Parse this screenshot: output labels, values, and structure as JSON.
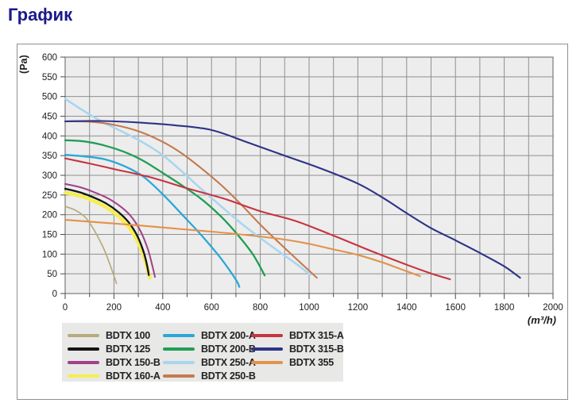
{
  "page": {
    "title": "График"
  },
  "chart_data": {
    "type": "line",
    "title": "График",
    "xlabel": "(m³/h)",
    "ylabel": "(Pa)",
    "xlim": [
      0,
      2000
    ],
    "ylim": [
      0,
      600
    ],
    "x_ticks": [
      0,
      200,
      400,
      600,
      800,
      1000,
      1200,
      1400,
      1600,
      1800,
      2000
    ],
    "x_minor_step": 100,
    "y_ticks": [
      0,
      50,
      100,
      150,
      200,
      250,
      300,
      350,
      400,
      450,
      500,
      550,
      600
    ],
    "grid": true,
    "plot_bg": "#ededed",
    "grid_color": "#8f8f8f",
    "border_color": "#7a7a7a",
    "tick_text_color": "#1c1c1c",
    "legend_position": "bottom",
    "draw_order": [
      3,
      0,
      1,
      2,
      4,
      5,
      6,
      7,
      8,
      9,
      10
    ],
    "series": [
      {
        "name": "BDTX 100",
        "color": "#b5ab7d",
        "width": 1.7,
        "points": [
          [
            0,
            221
          ],
          [
            40,
            212
          ],
          [
            80,
            195
          ],
          [
            110,
            170
          ],
          [
            140,
            137
          ],
          [
            165,
            104
          ],
          [
            185,
            71
          ],
          [
            200,
            45
          ],
          [
            210,
            26
          ]
        ]
      },
      {
        "name": "BDTX 125",
        "color": "#141414",
        "width": 2.3,
        "points": [
          [
            0,
            266
          ],
          [
            60,
            257
          ],
          [
            120,
            243
          ],
          [
            170,
            228
          ],
          [
            220,
            206
          ],
          [
            260,
            181
          ],
          [
            295,
            147
          ],
          [
            320,
            109
          ],
          [
            335,
            74
          ],
          [
            343,
            47
          ]
        ]
      },
      {
        "name": "BDTX 150-B",
        "color": "#a0418a",
        "width": 2.0,
        "points": [
          [
            0,
            278
          ],
          [
            60,
            270
          ],
          [
            120,
            257
          ],
          [
            180,
            240
          ],
          [
            235,
            217
          ],
          [
            275,
            192
          ],
          [
            310,
            157
          ],
          [
            340,
            111
          ],
          [
            360,
            64
          ],
          [
            368,
            42
          ]
        ]
      },
      {
        "name": "BDTX 160-A",
        "color": "#f5ee51",
        "width": 4.5,
        "points": [
          [
            0,
            256
          ],
          [
            60,
            248
          ],
          [
            120,
            234
          ],
          [
            170,
            218
          ],
          [
            220,
            195
          ],
          [
            260,
            169
          ],
          [
            295,
            135
          ],
          [
            320,
            99
          ],
          [
            338,
            61
          ],
          [
            347,
            40
          ]
        ]
      },
      {
        "name": "BDTX 200-A",
        "color": "#2ba7d9",
        "width": 2.3,
        "points": [
          [
            0,
            352
          ],
          [
            80,
            348
          ],
          [
            160,
            341
          ],
          [
            240,
            324
          ],
          [
            320,
            297
          ],
          [
            400,
            252
          ],
          [
            480,
            200
          ],
          [
            560,
            147
          ],
          [
            640,
            88
          ],
          [
            700,
            35
          ],
          [
            714,
            17
          ]
        ]
      },
      {
        "name": "BDTX 200-B",
        "color": "#219e55",
        "width": 2.3,
        "points": [
          [
            0,
            389
          ],
          [
            80,
            386
          ],
          [
            160,
            376
          ],
          [
            240,
            360
          ],
          [
            320,
            337
          ],
          [
            400,
            306
          ],
          [
            480,
            274
          ],
          [
            560,
            239
          ],
          [
            640,
            195
          ],
          [
            710,
            147
          ],
          [
            770,
            99
          ],
          [
            818,
            46
          ]
        ]
      },
      {
        "name": "BDTX 250-A",
        "color": "#a9d6ef",
        "width": 2.6,
        "points": [
          [
            0,
            494
          ],
          [
            80,
            462
          ],
          [
            160,
            433
          ],
          [
            240,
            409
          ],
          [
            320,
            383
          ],
          [
            400,
            351
          ],
          [
            480,
            309
          ],
          [
            560,
            264
          ],
          [
            640,
            221
          ],
          [
            720,
            179
          ],
          [
            800,
            141
          ],
          [
            880,
            105
          ],
          [
            950,
            74
          ],
          [
            1005,
            48
          ]
        ]
      },
      {
        "name": "BDTX 250-B",
        "color": "#c47a4f",
        "width": 2.1,
        "points": [
          [
            0,
            437
          ],
          [
            100,
            436
          ],
          [
            200,
            428
          ],
          [
            300,
            412
          ],
          [
            400,
            385
          ],
          [
            480,
            355
          ],
          [
            560,
            317
          ],
          [
            640,
            275
          ],
          [
            720,
            227
          ],
          [
            800,
            175
          ],
          [
            880,
            127
          ],
          [
            960,
            81
          ],
          [
            1032,
            40
          ]
        ]
      },
      {
        "name": "BDTX 315-A",
        "color": "#c53540",
        "width": 2.1,
        "points": [
          [
            0,
            343
          ],
          [
            100,
            330
          ],
          [
            200,
            316
          ],
          [
            350,
            295
          ],
          [
            500,
            267
          ],
          [
            650,
            241
          ],
          [
            800,
            209
          ],
          [
            950,
            183
          ],
          [
            1100,
            147
          ],
          [
            1250,
            109
          ],
          [
            1400,
            73
          ],
          [
            1500,
            51
          ],
          [
            1578,
            36
          ]
        ]
      },
      {
        "name": "BDTX 315-B",
        "color": "#2e3387",
        "width": 2.1,
        "points": [
          [
            0,
            437
          ],
          [
            150,
            438
          ],
          [
            300,
            434
          ],
          [
            450,
            427
          ],
          [
            600,
            415
          ],
          [
            750,
            383
          ],
          [
            900,
            350
          ],
          [
            1050,
            317
          ],
          [
            1200,
            279
          ],
          [
            1300,
            244
          ],
          [
            1400,
            204
          ],
          [
            1500,
            166
          ],
          [
            1600,
            135
          ],
          [
            1700,
            103
          ],
          [
            1800,
            69
          ],
          [
            1865,
            40
          ]
        ]
      },
      {
        "name": "BDTX 355",
        "color": "#e29249",
        "width": 2.1,
        "points": [
          [
            0,
            187
          ],
          [
            150,
            180
          ],
          [
            300,
            173
          ],
          [
            450,
            165
          ],
          [
            600,
            157
          ],
          [
            750,
            148
          ],
          [
            900,
            137
          ],
          [
            1000,
            126
          ],
          [
            1100,
            112
          ],
          [
            1200,
            98
          ],
          [
            1300,
            79
          ],
          [
            1380,
            61
          ],
          [
            1455,
            44
          ]
        ]
      }
    ]
  }
}
